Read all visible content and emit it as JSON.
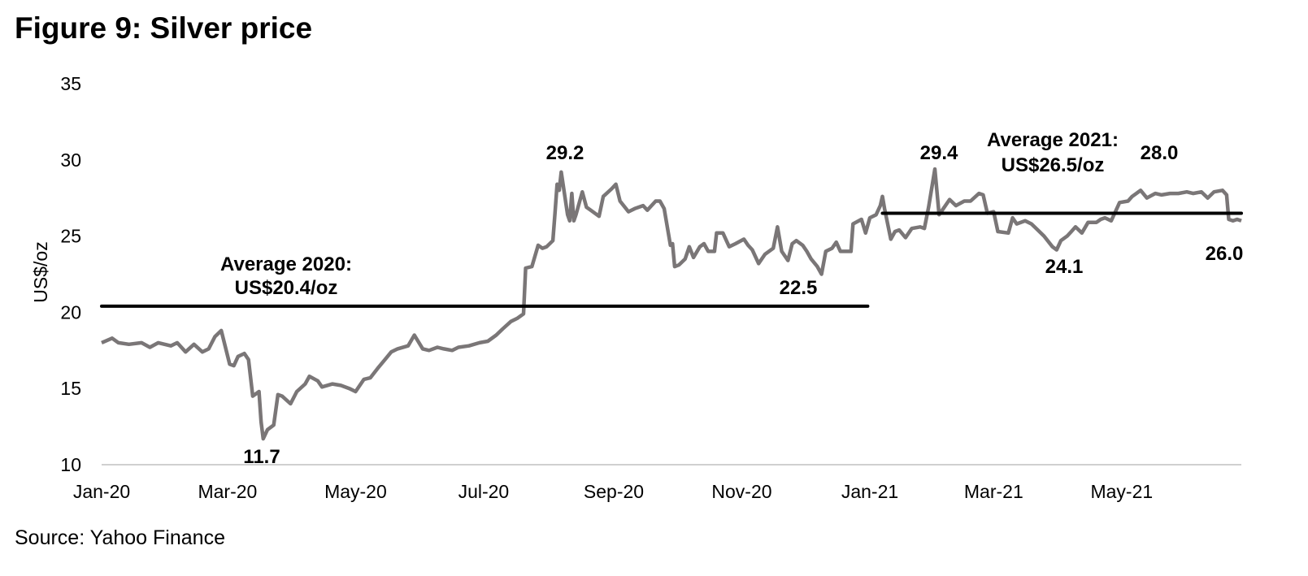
{
  "chart_data": {
    "type": "line",
    "title": "Figure 9: Silver price",
    "xlabel": "",
    "ylabel": "US$/oz",
    "ylim": [
      10,
      35
    ],
    "yticks": [
      "10",
      "15",
      "20",
      "25",
      "30",
      "35"
    ],
    "xticks": [
      {
        "label": "Jan-20",
        "date": "2020-01-01"
      },
      {
        "label": "Mar-20",
        "date": "2020-03-01"
      },
      {
        "label": "May-20",
        "date": "2020-05-01"
      },
      {
        "label": "Jul-20",
        "date": "2020-07-01"
      },
      {
        "label": "Sep-20",
        "date": "2020-09-01"
      },
      {
        "label": "Nov-20",
        "date": "2020-11-01"
      },
      {
        "label": "Jan-21",
        "date": "2021-01-01"
      },
      {
        "label": "Mar-21",
        "date": "2021-03-01"
      },
      {
        "label": "May-21",
        "date": "2021-05-01"
      }
    ],
    "xlim": [
      "2020-01-01",
      "2021-06-27"
    ],
    "grid": false,
    "line_color": "#7a7677",
    "series": [
      {
        "name": "Silver price",
        "points": [
          [
            "2020-01-01",
            18.0
          ],
          [
            "2020-01-06",
            18.3
          ],
          [
            "2020-01-09",
            18.0
          ],
          [
            "2020-01-14",
            17.9
          ],
          [
            "2020-01-20",
            18.0
          ],
          [
            "2020-01-24",
            17.7
          ],
          [
            "2020-01-28",
            18.0
          ],
          [
            "2020-02-03",
            17.8
          ],
          [
            "2020-02-06",
            18.0
          ],
          [
            "2020-02-10",
            17.4
          ],
          [
            "2020-02-14",
            17.9
          ],
          [
            "2020-02-18",
            17.4
          ],
          [
            "2020-02-21",
            17.6
          ],
          [
            "2020-02-24",
            18.4
          ],
          [
            "2020-02-27",
            18.8
          ],
          [
            "2020-03-02",
            16.6
          ],
          [
            "2020-03-04",
            16.5
          ],
          [
            "2020-03-06",
            17.1
          ],
          [
            "2020-03-09",
            17.3
          ],
          [
            "2020-03-11",
            16.9
          ],
          [
            "2020-03-13",
            14.5
          ],
          [
            "2020-03-16",
            14.8
          ],
          [
            "2020-03-17",
            12.8
          ],
          [
            "2020-03-18",
            11.7
          ],
          [
            "2020-03-20",
            12.3
          ],
          [
            "2020-03-23",
            12.6
          ],
          [
            "2020-03-25",
            14.6
          ],
          [
            "2020-03-27",
            14.5
          ],
          [
            "2020-03-31",
            14.0
          ],
          [
            "2020-04-03",
            14.8
          ],
          [
            "2020-04-07",
            15.3
          ],
          [
            "2020-04-09",
            15.8
          ],
          [
            "2020-04-13",
            15.5
          ],
          [
            "2020-04-15",
            15.1
          ],
          [
            "2020-04-20",
            15.3
          ],
          [
            "2020-04-24",
            15.2
          ],
          [
            "2020-04-28",
            15.0
          ],
          [
            "2020-05-01",
            14.8
          ],
          [
            "2020-05-05",
            15.6
          ],
          [
            "2020-05-08",
            15.7
          ],
          [
            "2020-05-12",
            16.4
          ],
          [
            "2020-05-15",
            16.9
          ],
          [
            "2020-05-18",
            17.4
          ],
          [
            "2020-05-21",
            17.6
          ],
          [
            "2020-05-26",
            17.8
          ],
          [
            "2020-05-29",
            18.5
          ],
          [
            "2020-06-02",
            17.6
          ],
          [
            "2020-06-05",
            17.5
          ],
          [
            "2020-06-09",
            17.7
          ],
          [
            "2020-06-12",
            17.6
          ],
          [
            "2020-06-16",
            17.5
          ],
          [
            "2020-06-19",
            17.7
          ],
          [
            "2020-06-24",
            17.8
          ],
          [
            "2020-06-29",
            18.0
          ],
          [
            "2020-07-03",
            18.1
          ],
          [
            "2020-07-07",
            18.5
          ],
          [
            "2020-07-10",
            18.9
          ],
          [
            "2020-07-14",
            19.4
          ],
          [
            "2020-07-17",
            19.6
          ],
          [
            "2020-07-20",
            19.9
          ],
          [
            "2020-07-21",
            22.9
          ],
          [
            "2020-07-24",
            23.0
          ],
          [
            "2020-07-27",
            24.4
          ],
          [
            "2020-07-29",
            24.2
          ],
          [
            "2020-07-31",
            24.3
          ],
          [
            "2020-08-03",
            24.7
          ],
          [
            "2020-08-04",
            26.5
          ],
          [
            "2020-08-05",
            28.4
          ],
          [
            "2020-08-06",
            28.0
          ],
          [
            "2020-08-07",
            29.2
          ],
          [
            "2020-08-10",
            26.4
          ],
          [
            "2020-08-11",
            26.0
          ],
          [
            "2020-08-12",
            27.8
          ],
          [
            "2020-08-13",
            26.0
          ],
          [
            "2020-08-14",
            26.4
          ],
          [
            "2020-08-17",
            27.9
          ],
          [
            "2020-08-19",
            26.9
          ],
          [
            "2020-08-21",
            26.7
          ],
          [
            "2020-08-25",
            26.3
          ],
          [
            "2020-08-27",
            27.6
          ],
          [
            "2020-08-31",
            28.1
          ],
          [
            "2020-09-02",
            28.4
          ],
          [
            "2020-09-04",
            27.3
          ],
          [
            "2020-09-08",
            26.6
          ],
          [
            "2020-09-11",
            26.8
          ],
          [
            "2020-09-15",
            27.0
          ],
          [
            "2020-09-17",
            26.7
          ],
          [
            "2020-09-21",
            27.3
          ],
          [
            "2020-09-23",
            27.3
          ],
          [
            "2020-09-25",
            26.8
          ],
          [
            "2020-09-28",
            24.4
          ],
          [
            "2020-09-29",
            24.5
          ],
          [
            "2020-09-30",
            23.0
          ],
          [
            "2020-10-02",
            23.1
          ],
          [
            "2020-10-05",
            23.5
          ],
          [
            "2020-10-07",
            24.3
          ],
          [
            "2020-10-09",
            23.6
          ],
          [
            "2020-10-12",
            24.3
          ],
          [
            "2020-10-14",
            24.5
          ],
          [
            "2020-10-16",
            24.0
          ],
          [
            "2020-10-19",
            24.0
          ],
          [
            "2020-10-20",
            25.2
          ],
          [
            "2020-10-23",
            25.2
          ],
          [
            "2020-10-26",
            24.3
          ],
          [
            "2020-10-29",
            24.5
          ],
          [
            "2020-11-02",
            24.8
          ],
          [
            "2020-11-04",
            24.4
          ],
          [
            "2020-11-06",
            24.1
          ],
          [
            "2020-11-09",
            23.2
          ],
          [
            "2020-11-12",
            23.8
          ],
          [
            "2020-11-16",
            24.2
          ],
          [
            "2020-11-18",
            25.6
          ],
          [
            "2020-11-20",
            24.0
          ],
          [
            "2020-11-23",
            23.4
          ],
          [
            "2020-11-25",
            24.5
          ],
          [
            "2020-11-27",
            24.7
          ],
          [
            "2020-11-30",
            24.4
          ],
          [
            "2020-12-02",
            24.0
          ],
          [
            "2020-12-04",
            23.5
          ],
          [
            "2020-12-07",
            23.0
          ],
          [
            "2020-12-09",
            22.5
          ],
          [
            "2020-12-11",
            24.0
          ],
          [
            "2020-12-14",
            24.2
          ],
          [
            "2020-12-16",
            24.6
          ],
          [
            "2020-12-18",
            24.0
          ],
          [
            "2020-12-21",
            24.0
          ],
          [
            "2020-12-23",
            24.0
          ],
          [
            "2020-12-24",
            25.8
          ],
          [
            "2020-12-28",
            26.1
          ],
          [
            "2020-12-30",
            25.2
          ],
          [
            "2021-01-01",
            26.2
          ],
          [
            "2021-01-04",
            26.4
          ],
          [
            "2021-01-06",
            27.0
          ],
          [
            "2021-01-07",
            27.6
          ],
          [
            "2021-01-08",
            26.8
          ],
          [
            "2021-01-11",
            24.8
          ],
          [
            "2021-01-13",
            25.3
          ],
          [
            "2021-01-15",
            25.4
          ],
          [
            "2021-01-18",
            24.9
          ],
          [
            "2021-01-21",
            25.5
          ],
          [
            "2021-01-25",
            25.6
          ],
          [
            "2021-01-27",
            25.5
          ],
          [
            "2021-01-29",
            26.9
          ],
          [
            "2021-02-01",
            29.4
          ],
          [
            "2021-02-03",
            26.4
          ],
          [
            "2021-02-05",
            26.8
          ],
          [
            "2021-02-08",
            27.4
          ],
          [
            "2021-02-11",
            27.0
          ],
          [
            "2021-02-15",
            27.3
          ],
          [
            "2021-02-18",
            27.3
          ],
          [
            "2021-02-22",
            27.8
          ],
          [
            "2021-02-24",
            27.7
          ],
          [
            "2021-02-26",
            26.5
          ],
          [
            "2021-03-01",
            26.6
          ],
          [
            "2021-03-03",
            25.3
          ],
          [
            "2021-03-08",
            25.2
          ],
          [
            "2021-03-10",
            26.2
          ],
          [
            "2021-03-12",
            25.8
          ],
          [
            "2021-03-16",
            26.0
          ],
          [
            "2021-03-19",
            25.8
          ],
          [
            "2021-03-22",
            25.4
          ],
          [
            "2021-03-25",
            25.0
          ],
          [
            "2021-03-29",
            24.3
          ],
          [
            "2021-03-31",
            24.1
          ],
          [
            "2021-04-02",
            24.7
          ],
          [
            "2021-04-05",
            25.0
          ],
          [
            "2021-04-07",
            25.3
          ],
          [
            "2021-04-09",
            25.6
          ],
          [
            "2021-04-12",
            25.2
          ],
          [
            "2021-04-15",
            25.9
          ],
          [
            "2021-04-19",
            25.9
          ],
          [
            "2021-04-21",
            26.1
          ],
          [
            "2021-04-23",
            26.2
          ],
          [
            "2021-04-26",
            26.0
          ],
          [
            "2021-04-28",
            26.6
          ],
          [
            "2021-04-30",
            27.2
          ],
          [
            "2021-05-04",
            27.3
          ],
          [
            "2021-05-06",
            27.6
          ],
          [
            "2021-05-10",
            28.0
          ],
          [
            "2021-05-13",
            27.5
          ],
          [
            "2021-05-17",
            27.8
          ],
          [
            "2021-05-20",
            27.7
          ],
          [
            "2021-05-24",
            27.8
          ],
          [
            "2021-05-28",
            27.8
          ],
          [
            "2021-06-01",
            27.9
          ],
          [
            "2021-06-04",
            27.8
          ],
          [
            "2021-06-08",
            27.9
          ],
          [
            "2021-06-11",
            27.5
          ],
          [
            "2021-06-14",
            27.9
          ],
          [
            "2021-06-18",
            28.0
          ],
          [
            "2021-06-20",
            27.7
          ],
          [
            "2021-06-21",
            26.1
          ],
          [
            "2021-06-23",
            26.0
          ],
          [
            "2021-06-25",
            26.1
          ],
          [
            "2021-06-27",
            26.0
          ]
        ]
      }
    ],
    "reference_lines": [
      {
        "name": "Average 2020",
        "value": 20.4,
        "from": "2020-01-01",
        "to": "2020-12-31"
      },
      {
        "name": "Average 2021",
        "value": 26.5,
        "from": "2021-01-07",
        "to": "2021-06-27"
      }
    ],
    "annotations": {
      "avg2020_line1": "Average 2020:",
      "avg2020_line2": "US$20.4/oz",
      "avg2021_line1": "Average 2021:",
      "avg2021_line2": "US$26.5/oz",
      "low_2020": "11.7",
      "high_2020": "29.2",
      "low_nov": "22.5",
      "high_feb21": "29.4",
      "low_mar21": "24.1",
      "high_may21": "28.0",
      "last": "26.0"
    }
  },
  "source": "Source: Yahoo Finance"
}
